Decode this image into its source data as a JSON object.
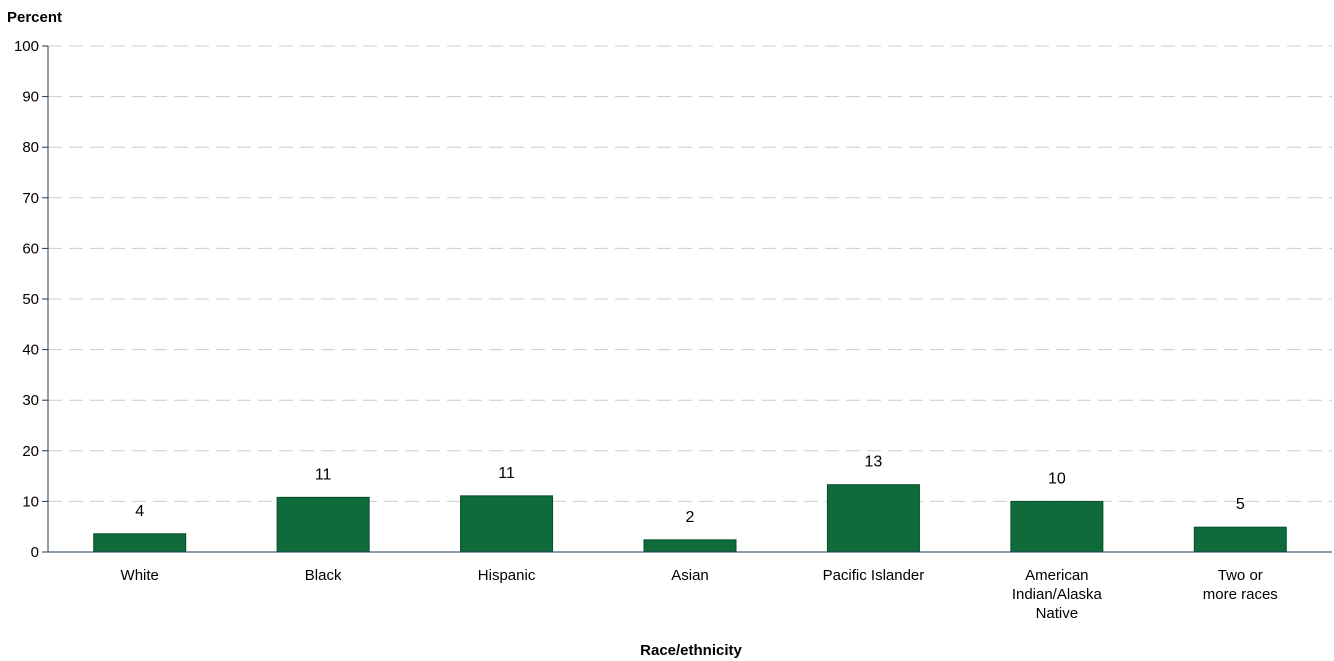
{
  "chart_data": {
    "type": "bar",
    "ylabel": "Percent",
    "xlabel": "Race/ethnicity",
    "ylim": [
      0,
      100
    ],
    "yticks": [
      0,
      10,
      20,
      30,
      40,
      50,
      60,
      70,
      80,
      90,
      100
    ],
    "grid": true,
    "categories": [
      [
        "White"
      ],
      [
        "Black"
      ],
      [
        "Hispanic"
      ],
      [
        "Asian"
      ],
      [
        "Pacific Islander"
      ],
      [
        "American",
        "Indian/Alaska",
        "Native"
      ],
      [
        "Two or",
        "more races"
      ]
    ],
    "values": [
      3.6,
      10.8,
      11.1,
      2.4,
      13.3,
      10.0,
      4.9
    ],
    "value_labels": [
      "4",
      "11",
      "11",
      "2",
      "13",
      "10",
      "5"
    ],
    "bar_color": "#0f6b3a",
    "grid_color": "#cccccc",
    "axis_color": "#1f3b57"
  }
}
